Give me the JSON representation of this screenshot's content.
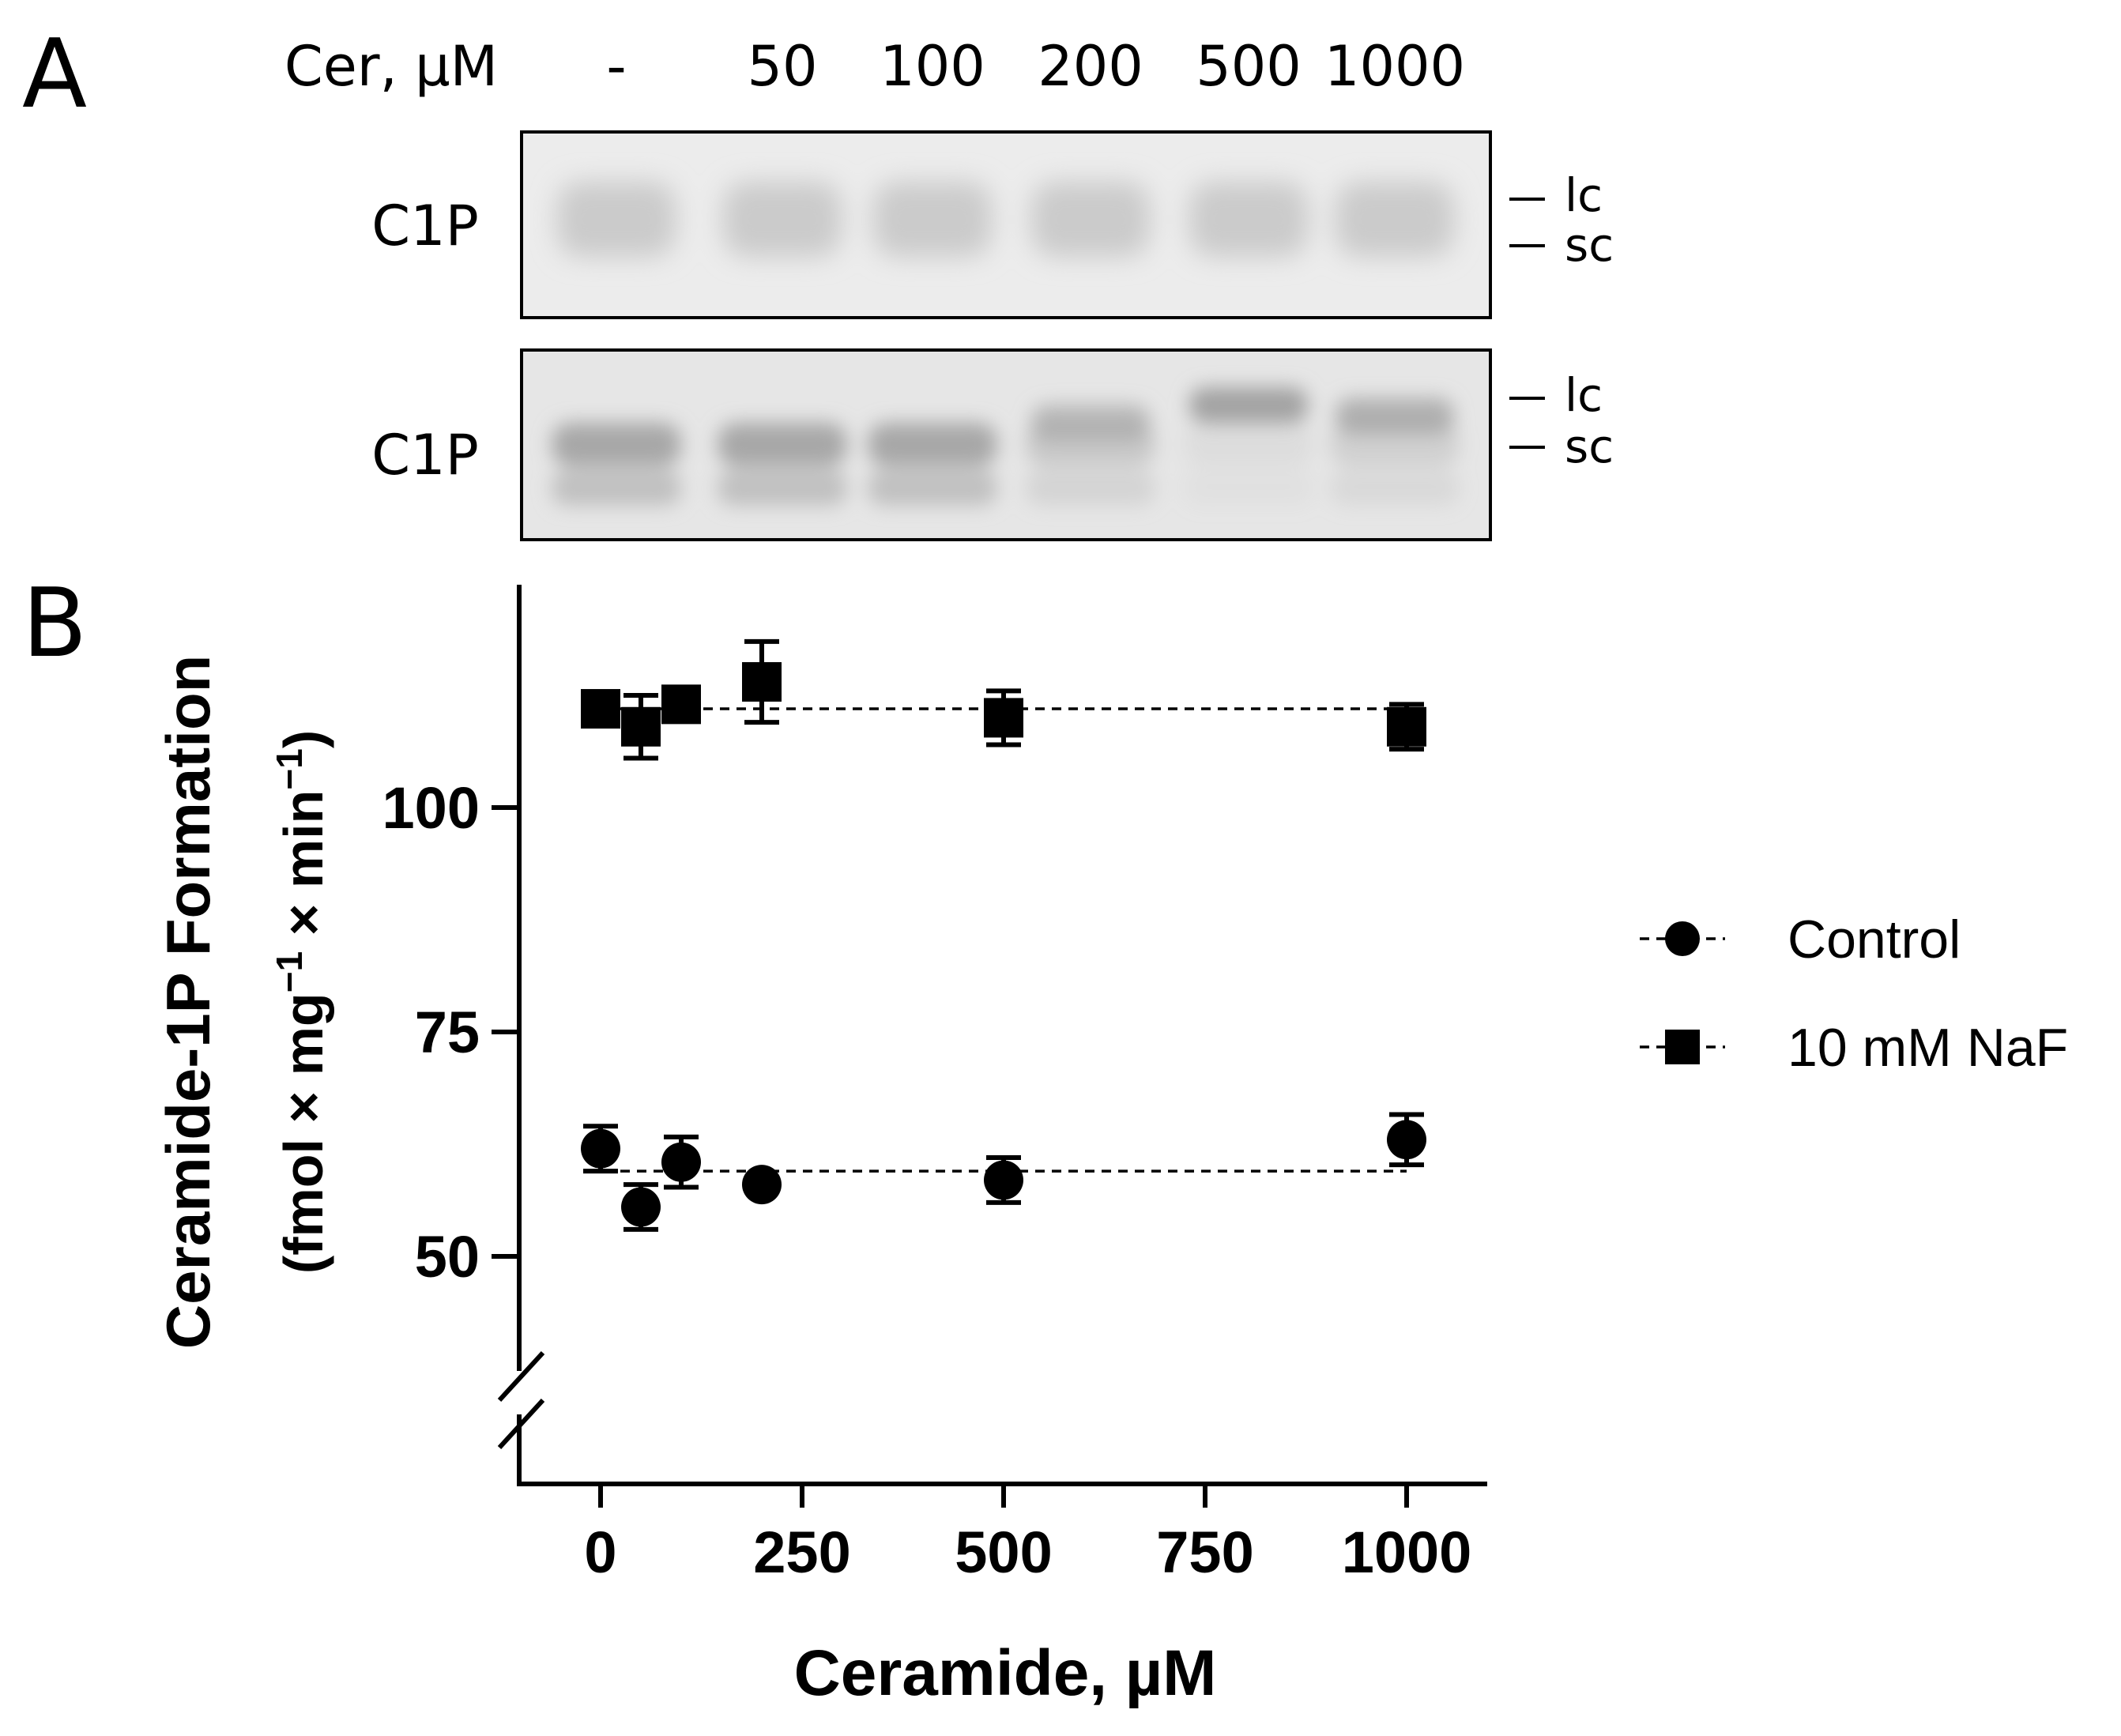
{
  "panel_a": {
    "letter": "A",
    "cer_label": "Cer, µM",
    "lanes": [
      "-",
      "50",
      "100",
      "200",
      "500",
      "1000"
    ],
    "blot1_label": "C1P",
    "blot2_label": "C1P",
    "marker_lc": "lc",
    "marker_sc": "sc",
    "blot2_band_shift": [
      0,
      0,
      0,
      0.6,
      1,
      0.75
    ]
  },
  "panel_b": {
    "letter": "B"
  },
  "chart_data": {
    "type": "scatter",
    "xlabel": "Ceramide, µM",
    "ylabel_line1": "Ceramide-1P Formation",
    "ylabel_line2_parts": [
      "(fmol × mg",
      "−1",
      " × min",
      "−1",
      ")"
    ],
    "xlim": [
      -100,
      1100
    ],
    "ylim": [
      30,
      120
    ],
    "y_axis_break": true,
    "x_ticks": [
      0,
      250,
      500,
      750,
      1000
    ],
    "x_tick_labels": [
      "0",
      "250",
      "500",
      "750",
      "1000"
    ],
    "y_ticks": [
      50,
      75,
      100
    ],
    "y_tick_labels": [
      "50",
      "75",
      "100"
    ],
    "legend_position": "right",
    "series": [
      {
        "name": "Control",
        "marker": "circle",
        "color": "#000000",
        "x": [
          0,
          50,
          100,
          200,
          500,
          1000
        ],
        "y": [
          62,
          55.5,
          60.5,
          58,
          58.5,
          63
        ],
        "err": [
          2.5,
          2.5,
          2.8,
          0,
          2.5,
          2.8
        ],
        "fit_y": 59.5
      },
      {
        "name": "10 mM NaF",
        "marker": "square",
        "color": "#000000",
        "x": [
          0,
          50,
          100,
          200,
          500,
          1000
        ],
        "y": [
          111,
          109,
          111.5,
          114,
          110,
          109
        ],
        "err": [
          1.5,
          3.5,
          1.5,
          4.5,
          3.0,
          2.5
        ],
        "fit_y": 111
      }
    ]
  }
}
